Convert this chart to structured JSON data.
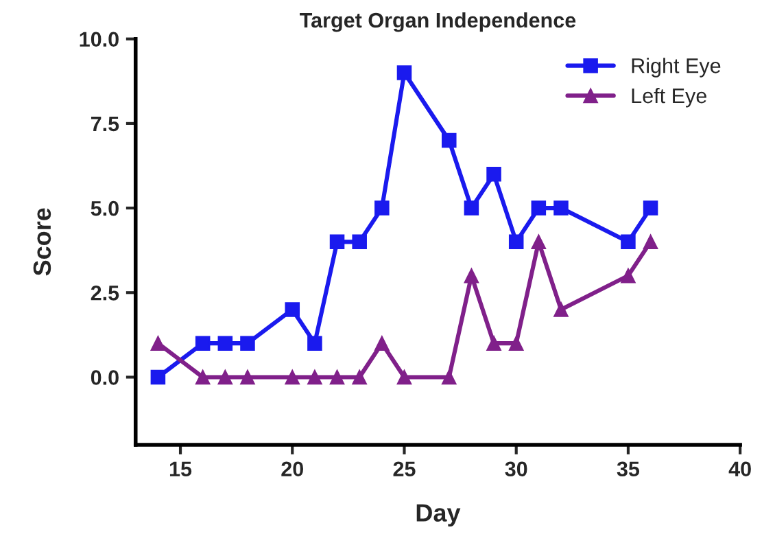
{
  "chart_data": {
    "type": "line",
    "title": "Target Organ Independence",
    "xlabel": "Day",
    "ylabel": "Score",
    "x": [
      14,
      16,
      17,
      18,
      20,
      21,
      22,
      23,
      24,
      25,
      27,
      28,
      29,
      30,
      31,
      32,
      35,
      36
    ],
    "series": [
      {
        "name": "Right Eye",
        "color": "#1a1aee",
        "marker": "square",
        "values": [
          0,
          1,
          1,
          1,
          2,
          1,
          4,
          4,
          5,
          9,
          7,
          5,
          6,
          4,
          5,
          5,
          4,
          5
        ]
      },
      {
        "name": "Left Eye",
        "color": "#80208a",
        "marker": "triangle",
        "values": [
          1,
          0,
          0,
          0,
          0,
          0,
          0,
          0,
          1,
          0,
          0,
          3,
          1,
          1,
          4,
          2,
          3,
          4
        ]
      }
    ],
    "xlim": [
      13,
      40
    ],
    "xticks": [
      15,
      20,
      25,
      30,
      35,
      40
    ],
    "ylim": [
      -2,
      10
    ],
    "yticks": [
      {
        "value": 0,
        "label": "0.0"
      },
      {
        "value": 2.5,
        "label": "2.5"
      },
      {
        "value": 5,
        "label": "5.0"
      },
      {
        "value": 7.5,
        "label": "7.5"
      },
      {
        "value": 10,
        "label": "10.0"
      }
    ],
    "grid": false,
    "legend": "top right",
    "line_style": "solid"
  }
}
